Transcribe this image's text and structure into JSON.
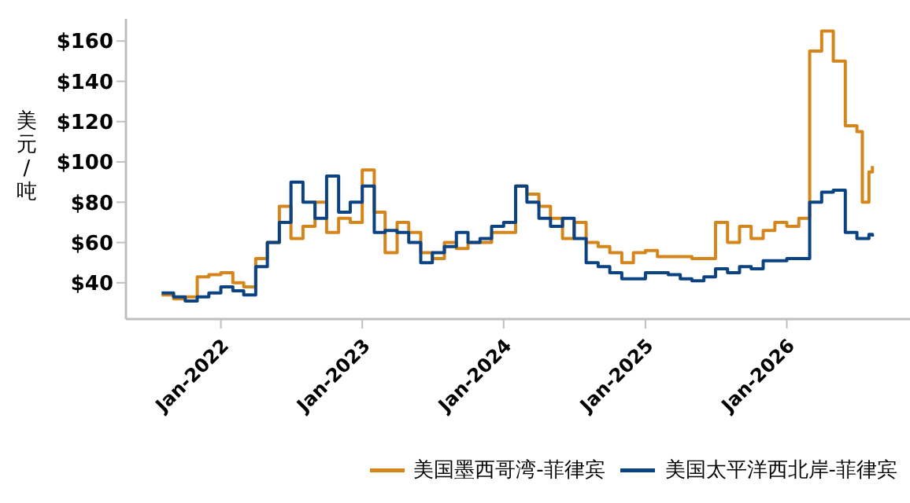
{
  "chart_data": {
    "type": "step",
    "ylabel": "美元/吨",
    "xlim": [
      "2021-05-01",
      "2026-11-15"
    ],
    "xticks": [
      {
        "value": "2022-01-01",
        "label": "Jan-2022"
      },
      {
        "value": "2023-01-01",
        "label": "Jan-2023"
      },
      {
        "value": "2024-01-01",
        "label": "Jan-2024"
      },
      {
        "value": "2025-01-01",
        "label": "Jan-2025"
      },
      {
        "value": "2026-01-01",
        "label": "Jan-2026"
      }
    ],
    "ylim": [
      22,
      171
    ],
    "yticks": [
      {
        "value": 40,
        "label": "$40"
      },
      {
        "value": 60,
        "label": "$60"
      },
      {
        "value": 80,
        "label": "$80"
      },
      {
        "value": 100,
        "label": "$100"
      },
      {
        "value": 120,
        "label": "$120"
      },
      {
        "value": 140,
        "label": "$140"
      },
      {
        "value": 160,
        "label": "$160"
      }
    ],
    "grid": false,
    "legend": "bottom",
    "marker": "none",
    "x": [
      "2021-08",
      "2021-09",
      "2021-10",
      "2021-11",
      "2021-12",
      "2022-01",
      "2022-02",
      "2022-03",
      "2022-04",
      "2022-05",
      "2022-06",
      "2022-07",
      "2022-08",
      "2022-09",
      "2022-10",
      "2022-11",
      "2022-12",
      "2023-01",
      "2023-02",
      "2023-03",
      "2023-04",
      "2023-05",
      "2023-06",
      "2023-07",
      "2023-08",
      "2023-09",
      "2023-10",
      "2023-11",
      "2023-12",
      "2024-01",
      "2024-02",
      "2024-03",
      "2024-04",
      "2024-05",
      "2024-06",
      "2024-07",
      "2024-08",
      "2024-09",
      "2024-10",
      "2024-11",
      "2024-12",
      "2025-01",
      "2025-02",
      "2025-03",
      "2025-04",
      "2025-05",
      "2025-06",
      "2025-07",
      "2025-08",
      "2025-09",
      "2025-10",
      "2025-11",
      "2025-12",
      "2026-01",
      "2026-02",
      "2026-03",
      "2026-04",
      "2026-05",
      "2026-06",
      "2026-07",
      "2026-07-15",
      "2026-08",
      "2026-08-10"
    ],
    "series": [
      {
        "name": "美国墨西哥湾-菲律宾",
        "color": "#d4861c",
        "values": [
          34,
          32,
          33,
          43,
          44,
          45,
          40,
          38,
          52,
          60,
          78,
          62,
          68,
          80,
          65,
          72,
          70,
          96,
          75,
          55,
          70,
          65,
          55,
          52,
          60,
          57,
          60,
          60,
          65,
          65,
          88,
          84,
          78,
          72,
          62,
          70,
          60,
          58,
          55,
          50,
          55,
          56,
          53,
          53,
          53,
          52,
          52,
          70,
          60,
          68,
          62,
          66,
          70,
          68,
          72,
          155,
          165,
          150,
          118,
          115,
          80,
          95,
          98
        ]
      },
      {
        "name": "美国太平洋西北岸-菲律宾",
        "color": "#0b4382",
        "values": [
          35,
          33,
          31,
          33,
          35,
          38,
          36,
          34,
          48,
          60,
          70,
          90,
          80,
          72,
          93,
          75,
          80,
          88,
          65,
          66,
          65,
          60,
          50,
          55,
          58,
          65,
          60,
          62,
          68,
          70,
          88,
          80,
          72,
          68,
          72,
          62,
          50,
          48,
          45,
          42,
          42,
          45,
          45,
          44,
          42,
          41,
          43,
          47,
          45,
          48,
          47,
          51,
          51,
          52,
          52,
          80,
          85,
          86,
          65,
          62,
          62,
          64,
          63
        ]
      }
    ]
  }
}
